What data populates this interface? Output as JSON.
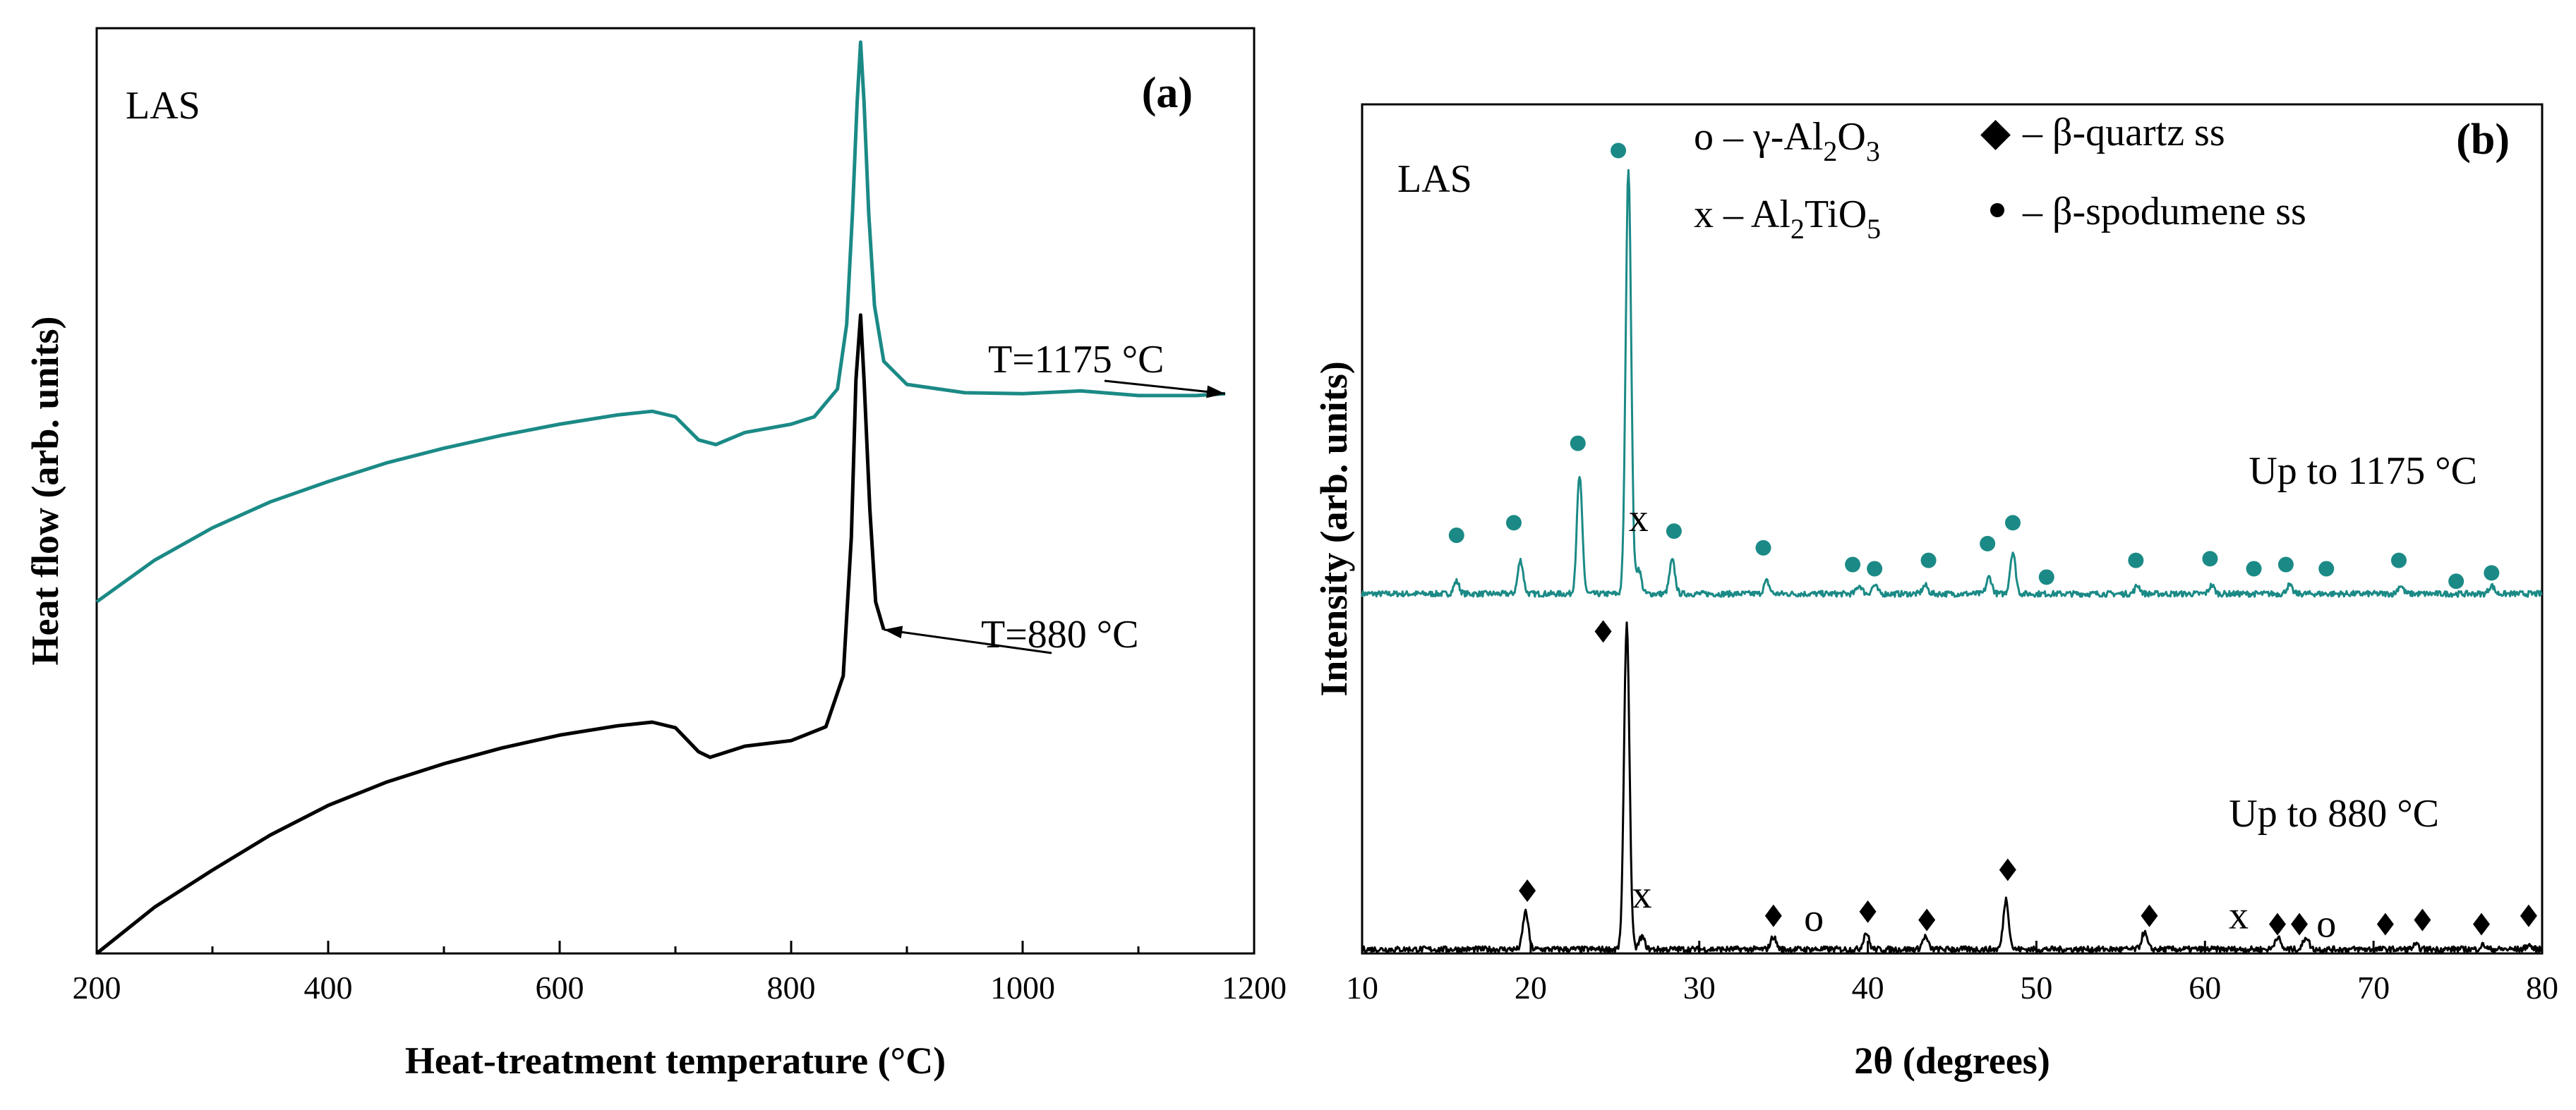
{
  "chart_data": [
    {
      "id": "a",
      "type": "line",
      "panel_label": "(a)",
      "sample_label": "LAS",
      "xlabel": "Heat-treatment temperature (°C)",
      "ylabel": "Heat flow (arb. units)",
      "xlim": [
        200,
        1200
      ],
      "ylim": [
        0,
        100
      ],
      "xticks": [
        200,
        400,
        600,
        800,
        1000,
        1200
      ],
      "series": [
        {
          "name": "T=1175 °C",
          "color": "#1b8a86",
          "points": [
            [
              200,
              38
            ],
            [
              250,
              42.5
            ],
            [
              300,
              46
            ],
            [
              350,
              48.8
            ],
            [
              400,
              51
            ],
            [
              450,
              53
            ],
            [
              500,
              54.6
            ],
            [
              550,
              56
            ],
            [
              600,
              57.2
            ],
            [
              650,
              58.2
            ],
            [
              680,
              58.6
            ],
            [
              700,
              58
            ],
            [
              720,
              55.5
            ],
            [
              735,
              55
            ],
            [
              760,
              56.3
            ],
            [
              800,
              57.2
            ],
            [
              820,
              58
            ],
            [
              840,
              61
            ],
            [
              848,
              68
            ],
            [
              853,
              80
            ],
            [
              857,
              92
            ],
            [
              860,
              98.5
            ],
            [
              863,
              92
            ],
            [
              867,
              80
            ],
            [
              872,
              70
            ],
            [
              880,
              64
            ],
            [
              900,
              61.5
            ],
            [
              950,
              60.6
            ],
            [
              1000,
              60.5
            ],
            [
              1050,
              60.8
            ],
            [
              1100,
              60.3
            ],
            [
              1150,
              60.3
            ],
            [
              1175,
              60.5
            ]
          ]
        },
        {
          "name": "T=880 °C",
          "color": "#000000",
          "points": [
            [
              200,
              0
            ],
            [
              250,
              5
            ],
            [
              300,
              9
            ],
            [
              350,
              12.8
            ],
            [
              400,
              16
            ],
            [
              450,
              18.5
            ],
            [
              500,
              20.5
            ],
            [
              550,
              22.2
            ],
            [
              600,
              23.6
            ],
            [
              650,
              24.6
            ],
            [
              680,
              25
            ],
            [
              700,
              24.4
            ],
            [
              720,
              21.8
            ],
            [
              730,
              21.2
            ],
            [
              760,
              22.4
            ],
            [
              800,
              23
            ],
            [
              830,
              24.5
            ],
            [
              845,
              30
            ],
            [
              852,
              45
            ],
            [
              856,
              62
            ],
            [
              860,
              69
            ],
            [
              863,
              62
            ],
            [
              868,
              48
            ],
            [
              873,
              38
            ],
            [
              880,
              35
            ]
          ]
        }
      ],
      "annotations": [
        {
          "text": "T=1175 °C",
          "target": [
            1175,
            60.5
          ]
        },
        {
          "text": "T=880 °C",
          "target": [
            880,
            35
          ]
        }
      ]
    },
    {
      "id": "b",
      "type": "line",
      "panel_label": "(b)",
      "sample_label": "LAS",
      "xlabel": "2θ (degrees)",
      "ylabel": "Intensity (arb. units)",
      "xlim": [
        10,
        80
      ],
      "ylim": [
        0,
        100
      ],
      "xticks": [
        10,
        20,
        30,
        40,
        50,
        60,
        70,
        80
      ],
      "series": [
        {
          "name": "Up to 1175 °C",
          "color": "#1b8a86",
          "baseline": 43,
          "peaks": [
            [
              15.6,
              1.5
            ],
            [
              19.4,
              4
            ],
            [
              22.9,
              14
            ],
            [
              25.8,
              51
            ],
            [
              26.4,
              3
            ],
            [
              28.4,
              4
            ],
            [
              34.0,
              1.5
            ],
            [
              39.5,
              1
            ],
            [
              40.4,
              1
            ],
            [
              43.4,
              1
            ],
            [
              47.2,
              2
            ],
            [
              48.6,
              5
            ],
            [
              56.0,
              1
            ],
            [
              60.4,
              1
            ],
            [
              65.0,
              1
            ],
            [
              71.6,
              1
            ],
            [
              77.0,
              1
            ]
          ]
        },
        {
          "name": "Up to 880 °C",
          "color": "#000000",
          "baseline": 0.5,
          "peaks": [
            [
              19.7,
              4.5
            ],
            [
              25.7,
              39
            ],
            [
              26.6,
              1.5
            ],
            [
              34.4,
              1.5
            ],
            [
              39.9,
              2
            ],
            [
              43.4,
              1.5
            ],
            [
              48.2,
              6
            ],
            [
              56.4,
              2
            ],
            [
              64.3,
              1.5
            ],
            [
              66.0,
              1.5
            ],
            [
              72.5,
              0.5
            ],
            [
              76.5,
              0.5
            ],
            [
              79.2,
              0.5
            ]
          ]
        }
      ],
      "markers": {
        "spodumene_1175": {
          "symbol": "●",
          "color": "#1b8a86",
          "points": [
            [
              15.6,
              50
            ],
            [
              19.0,
              51.5
            ],
            [
              22.8,
              61
            ],
            [
              25.2,
              96
            ],
            [
              28.5,
              50.5
            ],
            [
              33.8,
              48.5
            ],
            [
              39.1,
              46.5
            ],
            [
              40.4,
              46
            ],
            [
              43.6,
              47
            ],
            [
              47.1,
              49
            ],
            [
              48.6,
              51.5
            ],
            [
              50.6,
              45
            ],
            [
              55.9,
              47
            ],
            [
              60.3,
              47.2
            ],
            [
              62.9,
              46
            ],
            [
              64.8,
              46.5
            ],
            [
              67.2,
              46
            ],
            [
              71.5,
              47
            ],
            [
              74.9,
              44.5
            ],
            [
              77.0,
              45.5
            ]
          ]
        },
        "quartz_880": {
          "symbol": "◆",
          "color": "#000000",
          "points": [
            [
              19.8,
              7.5
            ],
            [
              24.3,
              38.5
            ],
            [
              34.4,
              4.5
            ],
            [
              40.0,
              5
            ],
            [
              43.5,
              4
            ],
            [
              48.3,
              10
            ],
            [
              56.7,
              4.5
            ],
            [
              64.3,
              3.5
            ],
            [
              65.6,
              3.5
            ],
            [
              70.7,
              3.5
            ],
            [
              72.9,
              4
            ],
            [
              76.4,
              3.5
            ],
            [
              79.2,
              4.5
            ]
          ]
        }
      },
      "text_markers": [
        {
          "text": "x",
          "x": 26.4,
          "y": 50.5,
          "color": "#1b8a86"
        },
        {
          "text": "x",
          "x": 26.6,
          "y": 5.5,
          "color": "#000000"
        },
        {
          "text": "o",
          "x": 36.8,
          "y": 2.7,
          "color": "#000000"
        },
        {
          "text": "x",
          "x": 62.0,
          "y": 3,
          "color": "#000000"
        },
        {
          "text": "o",
          "x": 67.2,
          "y": 2,
          "color": "#000000"
        }
      ],
      "legend": {
        "o_gamma": "o – γ-Al",
        "o_sub": "2",
        "o_tail": "O",
        "o_sub2": "3",
        "x_prefix": "x – Al",
        "x_sub": "2",
        "x_mid": "TiO",
        "x_sub2": "5",
        "quartz": "– β-quartz ss",
        "spodumene": "– β-spodumene ss"
      },
      "series_labels": [
        "Up to 1175 °C",
        "Up to 880 °C"
      ]
    }
  ]
}
